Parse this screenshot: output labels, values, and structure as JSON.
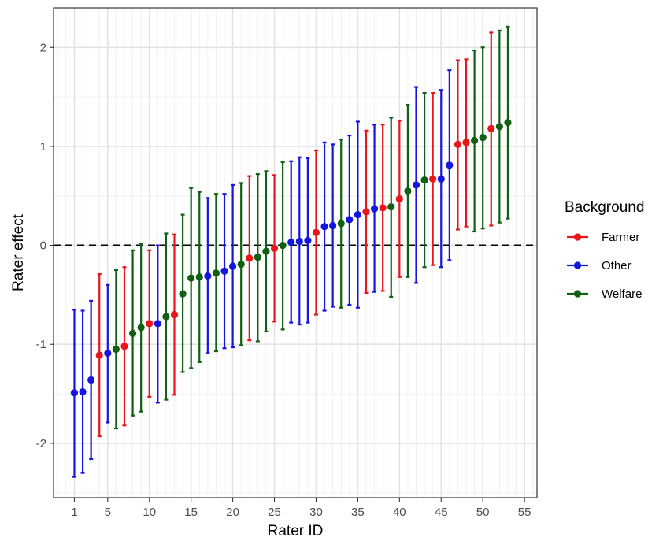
{
  "chart_data": {
    "type": "scatter",
    "subtype": "point-with-error-bars",
    "xlabel": "Rater ID",
    "ylabel": "Rater effect",
    "xlim": [
      -1.5,
      56.5
    ],
    "ylim": [
      -2.55,
      2.4
    ],
    "x_ticks": [
      1,
      5,
      10,
      15,
      20,
      25,
      30,
      35,
      40,
      45,
      50,
      55
    ],
    "x_tick_labels": [
      "1",
      "5",
      "10",
      "15",
      "20",
      "25",
      "30",
      "35",
      "40",
      "45",
      "50",
      "55"
    ],
    "y_ticks": [
      -2,
      -1,
      0,
      1,
      2
    ],
    "y_tick_labels": [
      "-2",
      "-1",
      "0",
      "1",
      "2"
    ],
    "reference_line": {
      "y": 0,
      "style": "dashed",
      "color": "#000000"
    },
    "grid": true,
    "legend": {
      "title": "Background",
      "position": "right",
      "entries": [
        {
          "label": "Farmer",
          "color": "#e8161b"
        },
        {
          "label": "Other",
          "color": "#1515e0"
        },
        {
          "label": "Welfare",
          "color": "#0f6012"
        }
      ]
    },
    "series": [
      {
        "name": "Farmer",
        "color": "#e8161b",
        "points": [
          {
            "x": 4,
            "y": -1.11,
            "lower": -1.93,
            "upper": -0.29
          },
          {
            "x": 7,
            "y": -1.02,
            "lower": -1.82,
            "upper": -0.22
          },
          {
            "x": 10,
            "y": -0.79,
            "lower": -1.53,
            "upper": -0.05
          },
          {
            "x": 13,
            "y": -0.7,
            "lower": -1.51,
            "upper": 0.11
          },
          {
            "x": 22,
            "y": -0.13,
            "lower": -0.96,
            "upper": 0.7
          },
          {
            "x": 25,
            "y": -0.03,
            "lower": -0.77,
            "upper": 0.71
          },
          {
            "x": 30,
            "y": 0.13,
            "lower": -0.7,
            "upper": 0.96
          },
          {
            "x": 36,
            "y": 0.34,
            "lower": -0.48,
            "upper": 1.16
          },
          {
            "x": 38,
            "y": 0.38,
            "lower": -0.46,
            "upper": 1.22
          },
          {
            "x": 40,
            "y": 0.47,
            "lower": -0.32,
            "upper": 1.26
          },
          {
            "x": 44,
            "y": 0.67,
            "lower": -0.2,
            "upper": 1.54
          },
          {
            "x": 47,
            "y": 1.02,
            "lower": 0.16,
            "upper": 1.87
          },
          {
            "x": 48,
            "y": 1.04,
            "lower": 0.19,
            "upper": 1.88
          },
          {
            "x": 51,
            "y": 1.18,
            "lower": 0.2,
            "upper": 2.15
          }
        ]
      },
      {
        "name": "Other",
        "color": "#1515e0",
        "points": [
          {
            "x": 1,
            "y": -1.49,
            "lower": -2.34,
            "upper": -0.65
          },
          {
            "x": 2,
            "y": -1.48,
            "lower": -2.3,
            "upper": -0.66
          },
          {
            "x": 3,
            "y": -1.36,
            "lower": -2.16,
            "upper": -0.56
          },
          {
            "x": 5,
            "y": -1.09,
            "lower": -1.79,
            "upper": -0.4
          },
          {
            "x": 11,
            "y": -0.79,
            "lower": -1.59,
            "upper": -0.0
          },
          {
            "x": 17,
            "y": -0.31,
            "lower": -1.09,
            "upper": 0.48
          },
          {
            "x": 19,
            "y": -0.26,
            "lower": -1.04,
            "upper": 0.52
          },
          {
            "x": 20,
            "y": -0.21,
            "lower": -1.03,
            "upper": 0.61
          },
          {
            "x": 27,
            "y": 0.03,
            "lower": -0.78,
            "upper": 0.85
          },
          {
            "x": 28,
            "y": 0.04,
            "lower": -0.8,
            "upper": 0.89
          },
          {
            "x": 29,
            "y": 0.05,
            "lower": -0.78,
            "upper": 0.88
          },
          {
            "x": 31,
            "y": 0.19,
            "lower": -0.66,
            "upper": 1.04
          },
          {
            "x": 32,
            "y": 0.2,
            "lower": -0.62,
            "upper": 1.02
          },
          {
            "x": 34,
            "y": 0.26,
            "lower": -0.6,
            "upper": 1.11
          },
          {
            "x": 35,
            "y": 0.31,
            "lower": -0.63,
            "upper": 1.25
          },
          {
            "x": 37,
            "y": 0.37,
            "lower": -0.47,
            "upper": 1.22
          },
          {
            "x": 42,
            "y": 0.61,
            "lower": -0.38,
            "upper": 1.6
          },
          {
            "x": 45,
            "y": 0.67,
            "lower": -0.22,
            "upper": 1.57
          },
          {
            "x": 46,
            "y": 0.81,
            "lower": -0.15,
            "upper": 1.77
          }
        ]
      },
      {
        "name": "Welfare",
        "color": "#0f6012",
        "points": [
          {
            "x": 6,
            "y": -1.05,
            "lower": -1.85,
            "upper": -0.25
          },
          {
            "x": 8,
            "y": -0.89,
            "lower": -1.72,
            "upper": -0.05
          },
          {
            "x": 9,
            "y": -0.83,
            "lower": -1.68,
            "upper": 0.02
          },
          {
            "x": 12,
            "y": -0.72,
            "lower": -1.56,
            "upper": 0.12
          },
          {
            "x": 14,
            "y": -0.49,
            "lower": -1.28,
            "upper": 0.31
          },
          {
            "x": 15,
            "y": -0.33,
            "lower": -1.24,
            "upper": 0.58
          },
          {
            "x": 16,
            "y": -0.32,
            "lower": -1.18,
            "upper": 0.54
          },
          {
            "x": 18,
            "y": -0.28,
            "lower": -1.07,
            "upper": 0.52
          },
          {
            "x": 21,
            "y": -0.19,
            "lower": -1.01,
            "upper": 0.63
          },
          {
            "x": 23,
            "y": -0.12,
            "lower": -0.97,
            "upper": 0.72
          },
          {
            "x": 24,
            "y": -0.06,
            "lower": -0.87,
            "upper": 0.75
          },
          {
            "x": 26,
            "y": 0.0,
            "lower": -0.85,
            "upper": 0.84
          },
          {
            "x": 33,
            "y": 0.22,
            "lower": -0.63,
            "upper": 1.07
          },
          {
            "x": 39,
            "y": 0.39,
            "lower": -0.52,
            "upper": 1.29
          },
          {
            "x": 41,
            "y": 0.55,
            "lower": -0.32,
            "upper": 1.42
          },
          {
            "x": 43,
            "y": 0.66,
            "lower": -0.22,
            "upper": 1.54
          },
          {
            "x": 49,
            "y": 1.06,
            "lower": 0.14,
            "upper": 1.97
          },
          {
            "x": 50,
            "y": 1.09,
            "lower": 0.17,
            "upper": 2.0
          },
          {
            "x": 52,
            "y": 1.2,
            "lower": 0.23,
            "upper": 2.17
          },
          {
            "x": 53,
            "y": 1.24,
            "lower": 0.27,
            "upper": 2.21
          }
        ]
      }
    ]
  }
}
